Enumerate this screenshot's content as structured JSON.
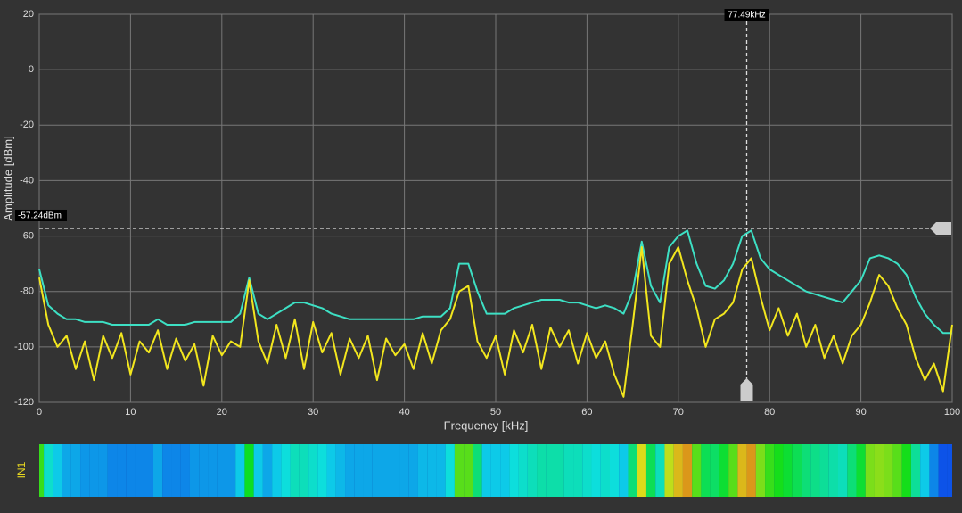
{
  "chart_data": {
    "type": "line",
    "x_label": "Frequency [kHz]",
    "y_label": "Amplitude [dBm]",
    "x": [
      0,
      1,
      2,
      3,
      4,
      5,
      6,
      7,
      8,
      9,
      10,
      11,
      12,
      13,
      14,
      15,
      16,
      17,
      18,
      19,
      20,
      21,
      22,
      23,
      24,
      25,
      26,
      27,
      28,
      29,
      30,
      31,
      32,
      33,
      34,
      35,
      36,
      37,
      38,
      39,
      40,
      41,
      42,
      43,
      44,
      45,
      46,
      47,
      48,
      49,
      50,
      51,
      52,
      53,
      54,
      55,
      56,
      57,
      58,
      59,
      60,
      61,
      62,
      63,
      64,
      65,
      66,
      67,
      68,
      69,
      70,
      71,
      72,
      73,
      74,
      75,
      76,
      77,
      78,
      79,
      80,
      81,
      82,
      83,
      84,
      85,
      86,
      87,
      88,
      89,
      90,
      91,
      92,
      93,
      94,
      95,
      96,
      97,
      98,
      99,
      100
    ],
    "series": [
      {
        "color": "#3de0c4",
        "values": [
          -72,
          -85,
          -88,
          -90,
          -90,
          -91,
          -91,
          -91,
          -92,
          -92,
          -92,
          -92,
          -92,
          -90,
          -92,
          -92,
          -92,
          -91,
          -91,
          -91,
          -91,
          -91,
          -88,
          -75,
          -88,
          -90,
          -88,
          -86,
          -84,
          -84,
          -85,
          -86,
          -88,
          -89,
          -90,
          -90,
          -90,
          -90,
          -90,
          -90,
          -90,
          -90,
          -89,
          -89,
          -89,
          -86,
          -70,
          -70,
          -80,
          -88,
          -88,
          -88,
          -86,
          -85,
          -84,
          -83,
          -83,
          -83,
          -84,
          -84,
          -85,
          -86,
          -85,
          -86,
          -88,
          -80,
          -62,
          -78,
          -84,
          -64,
          -60,
          -58,
          -70,
          -78,
          -79,
          -76,
          -70,
          -60,
          -58,
          -68,
          -72,
          -74,
          -76,
          -78,
          -80,
          -81,
          -82,
          -83,
          -84,
          -80,
          -76,
          -68,
          -67,
          -68,
          -70,
          -74,
          -82,
          -88,
          -92,
          -95,
          -95
        ]
      },
      {
        "color": "#f2e61e",
        "values": [
          -75,
          -92,
          -100,
          -96,
          -108,
          -98,
          -112,
          -96,
          -104,
          -95,
          -110,
          -98,
          -102,
          -94,
          -108,
          -97,
          -105,
          -99,
          -114,
          -96,
          -103,
          -98,
          -100,
          -76,
          -98,
          -106,
          -92,
          -104,
          -90,
          -108,
          -91,
          -102,
          -95,
          -110,
          -97,
          -104,
          -96,
          -112,
          -97,
          -103,
          -99,
          -108,
          -95,
          -106,
          -94,
          -90,
          -80,
          -78,
          -98,
          -104,
          -96,
          -110,
          -94,
          -102,
          -92,
          -108,
          -93,
          -100,
          -94,
          -106,
          -95,
          -104,
          -98,
          -110,
          -118,
          -92,
          -64,
          -96,
          -100,
          -70,
          -64,
          -76,
          -86,
          -100,
          -90,
          -88,
          -84,
          -72,
          -68,
          -82,
          -94,
          -86,
          -96,
          -88,
          -100,
          -92,
          -104,
          -96,
          -106,
          -96,
          -92,
          -84,
          -74,
          -78,
          -86,
          -92,
          -104,
          -112,
          -106,
          -116,
          -92
        ]
      }
    ],
    "xlim": [
      0,
      100
    ],
    "xticks": [
      0,
      10,
      20,
      30,
      40,
      50,
      60,
      70,
      80,
      90,
      100
    ],
    "ylim": [
      -120,
      20
    ],
    "yticks": [
      -120,
      -100,
      -80,
      -60,
      -40,
      -20,
      0,
      20
    ],
    "grid": true,
    "x_cursor": {
      "value": 77.49,
      "label": "77.49kHz"
    },
    "y_cursor": {
      "value": -57.24,
      "label": "-57.24dBm"
    },
    "channel": "IN1"
  }
}
